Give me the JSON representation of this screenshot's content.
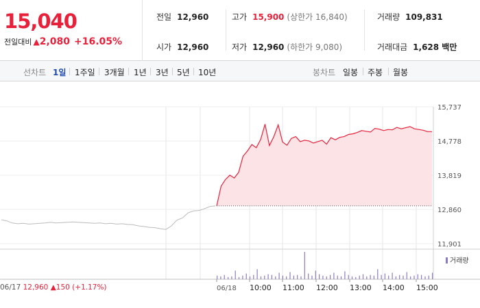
{
  "summary": {
    "current_price": "15,040",
    "change_label": "전일대비",
    "change_arrow": "▲",
    "change_value": "2,080",
    "change_pct": "+16.05%"
  },
  "info": {
    "prev_close_label": "전일",
    "prev_close": "12,960",
    "open_label": "시가",
    "open": "12,960",
    "high_label": "고가",
    "high": "15,900",
    "upper_limit": "(상한가 16,840)",
    "low_label": "저가",
    "low": "12,960",
    "lower_limit": "(하한가 9,080)",
    "volume_label": "거래량",
    "volume": "109,831",
    "amount_label": "거래대금",
    "amount": "1,628 백만"
  },
  "tabs": {
    "line_label": "선차트",
    "line_periods": [
      "1일",
      "1주일",
      "3개월",
      "1년",
      "3년",
      "5년",
      "10년"
    ],
    "active": "1일",
    "candle_label": "봉차트",
    "candle_periods": [
      "일봉",
      "주봉",
      "월봉"
    ]
  },
  "chart_data": {
    "type": "line",
    "y_ticks": [
      "15,737",
      "14,778",
      "13,819",
      "12,860",
      "11,901"
    ],
    "ylim": [
      11901,
      15737
    ],
    "x_ticks": [
      "06/17",
      "06/18",
      "10:00",
      "11:00",
      "12:00",
      "13:00",
      "14:00",
      "15:00"
    ],
    "prev_close": 12960,
    "series": [
      {
        "day": "06/17",
        "color": "#bbbbbb",
        "values": [
          12570,
          12540,
          12480,
          12460,
          12470,
          12450,
          12460,
          12470,
          12480,
          12500,
          12480,
          12490,
          12500,
          12510,
          12500,
          12490,
          12480,
          12470,
          12480,
          12460,
          12470,
          12450,
          12460,
          12440,
          12430,
          12400,
          12380,
          12360,
          12350,
          12320,
          12300,
          12400,
          12560,
          12620,
          12760,
          12820,
          12830,
          12880,
          12940,
          12960
        ]
      },
      {
        "day": "06/18",
        "color": "#e8203a",
        "fill": "#fce4e6",
        "values": [
          12960,
          13510,
          13700,
          13820,
          13740,
          13900,
          14350,
          14500,
          14680,
          14590,
          14820,
          15250,
          14650,
          14900,
          15230,
          14750,
          14660,
          14850,
          14900,
          14760,
          14800,
          14780,
          14720,
          14760,
          14800,
          14690,
          14870,
          14810,
          14880,
          14900,
          14960,
          14980,
          15020,
          15070,
          15050,
          15030,
          15130,
          15110,
          15070,
          15100,
          15090,
          15160,
          15120,
          15150,
          15180,
          15120,
          15100,
          15080,
          15040,
          15040
        ]
      }
    ],
    "volume_label": "거래량",
    "volume_color": "#8a7bc0",
    "volume": [
      5,
      4,
      6,
      3,
      4,
      12,
      3,
      5,
      8,
      4,
      6,
      14,
      4,
      5,
      7,
      6,
      4,
      9,
      5,
      4,
      10,
      5,
      6,
      4,
      38,
      8,
      5,
      12,
      7,
      5,
      4,
      6,
      9,
      5,
      4,
      11,
      6,
      4,
      3,
      5,
      7,
      4,
      6,
      5,
      14,
      6,
      8,
      5,
      9,
      4,
      6,
      5,
      10,
      4,
      5,
      7,
      6,
      4,
      5,
      9
    ]
  },
  "footer": {
    "date": "06/17",
    "close": "12,960",
    "arrow": "▲",
    "diff": "150",
    "pct": "(+1.17%)"
  }
}
